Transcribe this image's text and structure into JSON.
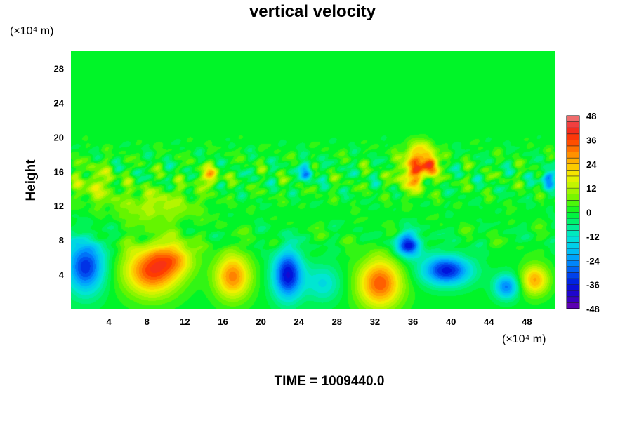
{
  "chart_data": {
    "type": "heatmap",
    "title": "vertical velocity",
    "ylabel": "Height",
    "xunit": "(×10⁴ m)",
    "yunit": "(×10⁴ m)",
    "xlim": [
      0,
      51
    ],
    "ylim": [
      0,
      30
    ],
    "xticks": [
      "4",
      "8",
      "12",
      "16",
      "20",
      "24",
      "28",
      "32",
      "36",
      "40",
      "44",
      "48"
    ],
    "yticks": [
      "4",
      "8",
      "12",
      "16",
      "20",
      "24",
      "28"
    ],
    "colorbar": {
      "min": -48,
      "max": 48,
      "ticks": [
        "48",
        "36",
        "24",
        "12",
        "0",
        "-12",
        "-24",
        "-36",
        "-48"
      ]
    },
    "features": [
      {
        "x": 1.5,
        "y": 5.0,
        "value": -34,
        "sx": 1.4,
        "sy": 2.2
      },
      {
        "x": 8.5,
        "y": 4.5,
        "value": 36,
        "sx": 2.0,
        "sy": 2.0
      },
      {
        "x": 11.0,
        "y": 6.0,
        "value": 18,
        "sx": 1.4,
        "sy": 1.4
      },
      {
        "x": 17.0,
        "y": 3.8,
        "value": 30,
        "sx": 1.3,
        "sy": 1.8
      },
      {
        "x": 22.8,
        "y": 4.0,
        "value": -38,
        "sx": 1.1,
        "sy": 2.0
      },
      {
        "x": 26.5,
        "y": 3.0,
        "value": -14,
        "sx": 1.3,
        "sy": 1.5
      },
      {
        "x": 32.5,
        "y": 3.0,
        "value": 34,
        "sx": 1.6,
        "sy": 2.0
      },
      {
        "x": 35.5,
        "y": 7.5,
        "value": -34,
        "sx": 1.0,
        "sy": 1.0
      },
      {
        "x": 39.5,
        "y": 4.5,
        "value": -36,
        "sx": 1.8,
        "sy": 1.2
      },
      {
        "x": 45.8,
        "y": 2.6,
        "value": -26,
        "sx": 0.9,
        "sy": 1.0
      },
      {
        "x": 48.8,
        "y": 3.4,
        "value": 26,
        "sx": 1.0,
        "sy": 1.2
      },
      {
        "x": 36.0,
        "y": 16.0,
        "value": 30,
        "sx": 1.0,
        "sy": 1.5
      },
      {
        "x": 37.8,
        "y": 16.8,
        "value": 36,
        "sx": 0.6,
        "sy": 0.8
      },
      {
        "x": 36.8,
        "y": 18.5,
        "value": 16,
        "sx": 1.0,
        "sy": 0.8
      },
      {
        "x": 14.5,
        "y": 15.5,
        "value": 20,
        "sx": 0.8,
        "sy": 0.8
      },
      {
        "x": 24.8,
        "y": 16.0,
        "value": -22,
        "sx": 0.5,
        "sy": 0.8
      },
      {
        "x": 50.3,
        "y": 15.2,
        "value": -30,
        "sx": 0.5,
        "sy": 0.8
      },
      {
        "x": 2.5,
        "y": 14.5,
        "value": 12,
        "sx": 1.5,
        "sy": 1.5
      },
      {
        "x": 9.0,
        "y": 12.0,
        "value": 12,
        "sx": 3.0,
        "sy": 1.5
      }
    ]
  },
  "footer": {
    "time_label": "TIME = 1009440.0"
  }
}
